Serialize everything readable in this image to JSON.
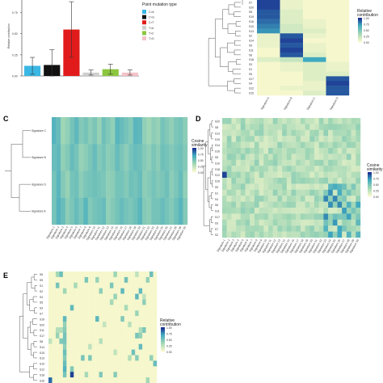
{
  "colors": {
    "heat_low": "#f6f7cc",
    "heat_mid": "#9fd6b5",
    "heat_mid2": "#3fa9c0",
    "heat_high": "#1a2f8f",
    "bar_CtoA": "#3ab7e4",
    "bar_CtoG": "#111111",
    "bar_CtoT": "#e11b1b",
    "bar_TtoA": "#cfcfcf",
    "bar_TtoC": "#8cc63f",
    "bar_TtoG": "#f3c3c8"
  },
  "chart_data": [
    {
      "panel": "A",
      "type": "bar",
      "ylabel": "Relative contribution",
      "legend_title": "Point mutation type",
      "legend_position": "right",
      "categories": [
        "C>A",
        "C>G",
        "C>T",
        "T>A",
        "T>C",
        "T>G"
      ],
      "values": [
        0.12,
        0.13,
        0.55,
        0.04,
        0.08,
        0.04
      ],
      "errors": [
        0.1,
        0.18,
        0.33,
        0.03,
        0.06,
        0.03
      ],
      "ylim": [
        0,
        0.9
      ]
    },
    {
      "panel": "B",
      "type": "heatmap",
      "legend_title": "Relative contribution",
      "legend_ticks": [
        "1.00",
        "0.75",
        "0.50",
        "0.25",
        "0.00"
      ],
      "rows": [
        "S7",
        "S20",
        "S8",
        "S19",
        "S16",
        "S10",
        "S13",
        "S2",
        "S14",
        "S9",
        "S11",
        "S6",
        "S18",
        "S3",
        "S1",
        "S5",
        "S17",
        "S4",
        "S12",
        "S15"
      ],
      "columns": [
        "Signature A",
        "Signature B",
        "Signature C",
        "Signature D"
      ],
      "values": [
        [
          0.95,
          0.05,
          0.0,
          0.0
        ],
        [
          0.95,
          0.05,
          0.0,
          0.0
        ],
        [
          0.9,
          0.1,
          0.0,
          0.0
        ],
        [
          0.9,
          0.1,
          0.0,
          0.0
        ],
        [
          0.85,
          0.1,
          0.05,
          0.0
        ],
        [
          0.8,
          0.15,
          0.05,
          0.0
        ],
        [
          0.75,
          0.15,
          0.1,
          0.0
        ],
        [
          0.05,
          0.9,
          0.05,
          0.0
        ],
        [
          0.05,
          0.95,
          0.0,
          0.0
        ],
        [
          0.05,
          0.9,
          0.05,
          0.0
        ],
        [
          0.0,
          0.95,
          0.05,
          0.0
        ],
        [
          0.0,
          0.9,
          0.1,
          0.0
        ],
        [
          0.1,
          0.2,
          0.7,
          0.0
        ],
        [
          0.0,
          0.05,
          0.1,
          0.05
        ],
        [
          0.0,
          0.05,
          0.1,
          0.05
        ],
        [
          0.0,
          0.0,
          0.1,
          0.1
        ],
        [
          0.0,
          0.0,
          0.1,
          0.9
        ],
        [
          0.0,
          0.0,
          0.05,
          0.95
        ],
        [
          0.0,
          0.05,
          0.05,
          0.9
        ],
        [
          0.0,
          0.0,
          0.1,
          0.9
        ]
      ]
    },
    {
      "panel": "C",
      "type": "heatmap",
      "legend_title": "Cosine similarity",
      "legend_ticks": [
        "1.00",
        "0.75",
        "0.50",
        "0.25",
        "0.00"
      ],
      "rows": [
        "Signature C",
        "Signature B",
        "Signature D",
        "Signature A"
      ],
      "columns": [
        "Signature 1",
        "Signature 2",
        "Signature 3",
        "Signature 4",
        "Signature 5",
        "Signature 6",
        "Signature 7",
        "Signature 8",
        "Signature 9",
        "Signature 10",
        "Signature 11",
        "Signature 12",
        "Signature 13",
        "Signature 14",
        "Signature 15",
        "Signature 16",
        "Signature 17",
        "Signature 18",
        "Signature 19",
        "Signature 20",
        "Signature 21",
        "Signature 22",
        "Signature 23",
        "Signature 24",
        "Signature 25",
        "Signature 26",
        "Signature 27",
        "Signature 28",
        "Signature 29",
        "Signature 30"
      ],
      "values": [
        [
          0.62,
          0.55,
          0.35,
          0.4,
          0.5,
          0.58,
          0.45,
          0.5,
          0.42,
          0.48,
          0.38,
          0.52,
          0.46,
          0.4,
          0.6,
          0.55,
          0.5,
          0.45,
          0.6,
          0.58,
          0.4,
          0.35,
          0.42,
          0.38,
          0.5,
          0.45,
          0.4,
          0.48,
          0.5,
          0.42
        ],
        [
          0.55,
          0.58,
          0.4,
          0.45,
          0.55,
          0.5,
          0.38,
          0.42,
          0.48,
          0.55,
          0.45,
          0.5,
          0.42,
          0.45,
          0.55,
          0.48,
          0.42,
          0.5,
          0.55,
          0.52,
          0.45,
          0.4,
          0.48,
          0.42,
          0.52,
          0.5,
          0.45,
          0.5,
          0.52,
          0.45
        ],
        [
          0.5,
          0.6,
          0.45,
          0.38,
          0.5,
          0.52,
          0.42,
          0.48,
          0.5,
          0.52,
          0.5,
          0.48,
          0.4,
          0.42,
          0.5,
          0.5,
          0.45,
          0.52,
          0.5,
          0.55,
          0.42,
          0.45,
          0.5,
          0.45,
          0.48,
          0.52,
          0.42,
          0.48,
          0.55,
          0.4
        ],
        [
          0.5,
          0.62,
          0.55,
          0.42,
          0.48,
          0.55,
          0.48,
          0.6,
          0.45,
          0.5,
          0.52,
          0.55,
          0.4,
          0.45,
          0.5,
          0.55,
          0.5,
          0.48,
          0.52,
          0.6,
          0.45,
          0.42,
          0.5,
          0.5,
          0.55,
          0.5,
          0.45,
          0.52,
          0.6,
          0.45
        ]
      ]
    },
    {
      "panel": "D",
      "type": "heatmap",
      "legend_title": "Cosine similarity",
      "legend_ticks": [
        "1.00",
        "0.75",
        "0.50",
        "0.25",
        "0.00"
      ],
      "rows": [
        "S20",
        "S8",
        "S13",
        "S19",
        "S14",
        "S16",
        "S5",
        "S10",
        "S18",
        "S12",
        "S15",
        "S9",
        "S1",
        "S4",
        "S6",
        "S11",
        "S17",
        "S3",
        "S7",
        "S2"
      ],
      "columns": [
        "Signature 1",
        "Signature 2",
        "Signature 3",
        "Signature 4",
        "Signature 5",
        "Signature 6",
        "Signature 7",
        "Signature 8",
        "Signature 9",
        "Signature 10",
        "Signature 11",
        "Signature 12",
        "Signature 13",
        "Signature 14",
        "Signature 15",
        "Signature 16",
        "Signature 17",
        "Signature 18",
        "Signature 19",
        "Signature 20",
        "Signature 21",
        "Signature 22",
        "Signature 23",
        "Signature 24",
        "Signature 25",
        "Signature 26",
        "Signature 27",
        "Signature 28",
        "Signature 29",
        "Signature 30"
      ]
    },
    {
      "panel": "E",
      "type": "heatmap",
      "legend_title": "Relative contribution",
      "legend_ticks": [
        "1.00",
        "0.75",
        "0.50",
        "0.25",
        "0.00"
      ],
      "rows": [
        "S6",
        "S9",
        "S1",
        "S2",
        "S4",
        "S5",
        "S3",
        "S7",
        "S19",
        "S20",
        "S11",
        "S17",
        "S8",
        "S14",
        "S15",
        "S13",
        "S10",
        "S12",
        "S18",
        "S16"
      ],
      "columns": [
        "Signature 1",
        "Signature 2",
        "Signature 3",
        "Signature 4",
        "Signature 5",
        "Signature 6",
        "Signature 7",
        "Signature 8",
        "Signature 9",
        "Signature 10",
        "Signature 11",
        "Signature 12",
        "Signature 13",
        "Signature 14",
        "Signature 15",
        "Signature 16",
        "Signature 17",
        "Signature 18",
        "Signature 19",
        "Signature 20",
        "Signature 21",
        "Signature 22",
        "Signature 23",
        "Signature 24",
        "Signature 25",
        "Signature 26",
        "Signature 27",
        "Signature 28",
        "Signature 29",
        "Signature 30"
      ]
    }
  ]
}
